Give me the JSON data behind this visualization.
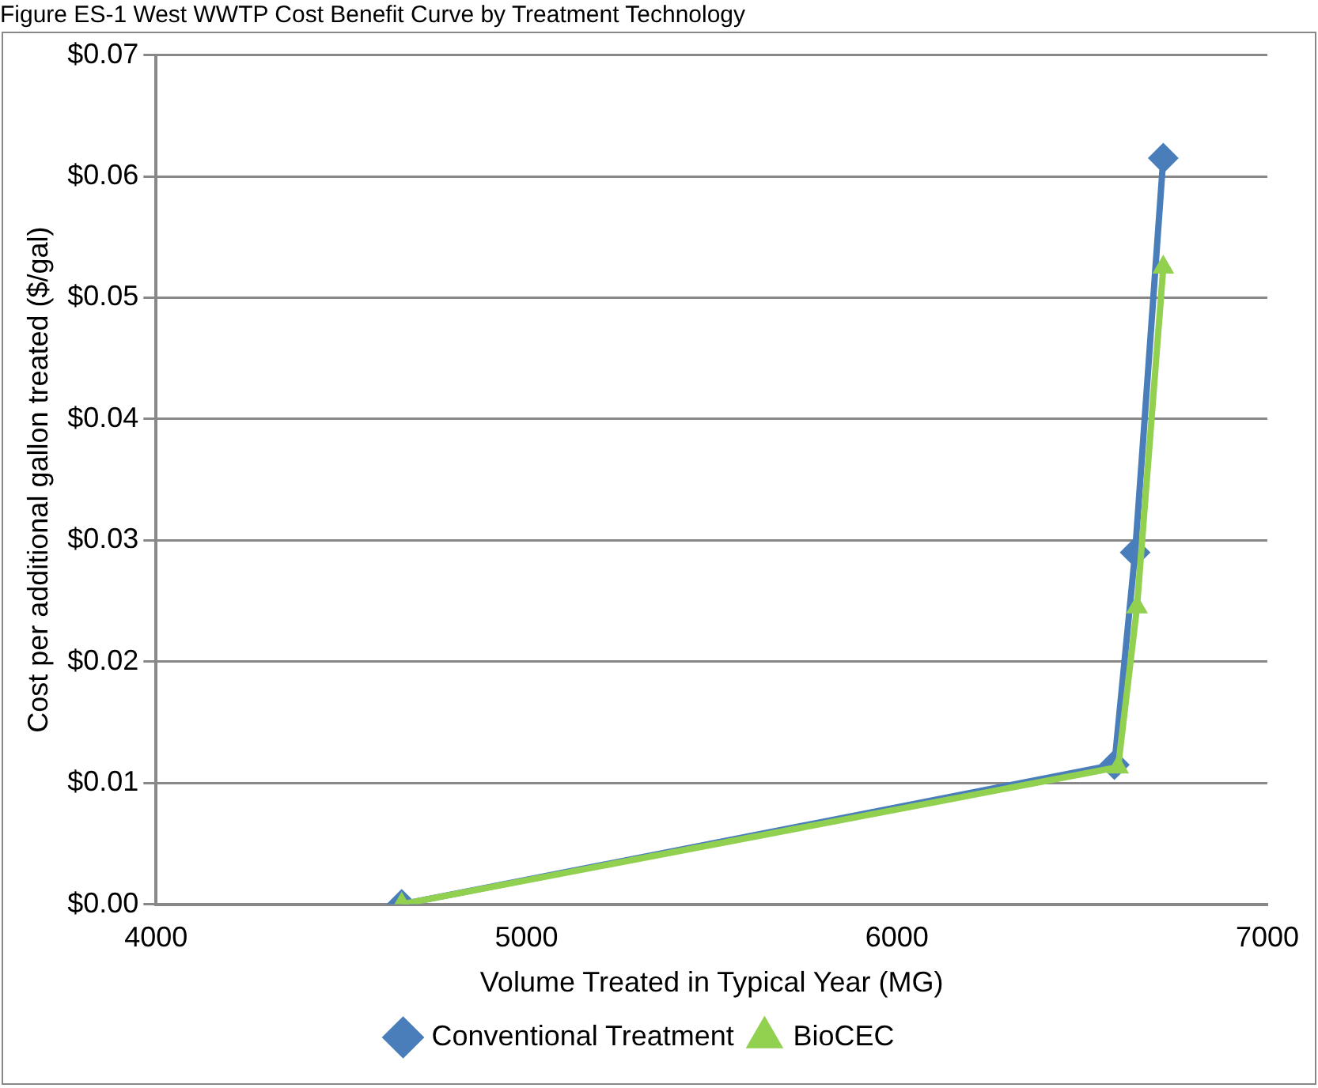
{
  "chart_data": {
    "type": "line",
    "title": "Figure ES-1 West WWTP Cost Benefit Curve by Treatment Technology",
    "xlabel": "Volume Treated in Typical Year (MG)",
    "ylabel": "Cost per additional gallon treated ($/gal)",
    "series": [
      {
        "name": "Conventional Treatment",
        "color": "#4a7ebb",
        "marker": "diamond",
        "x": [
          4663,
          6587,
          6643,
          6719
        ],
        "values": [
          0,
          0.0115,
          0.029,
          0.0615
        ]
      },
      {
        "name": "BioCEC",
        "color": "#92d050",
        "marker": "triangle",
        "x": [
          4663,
          6597,
          6648,
          6719
        ],
        "values": [
          0,
          0.0113,
          0.0245,
          0.0525
        ]
      }
    ],
    "xlim": [
      4000,
      7000
    ],
    "xticks": [
      4000,
      5000,
      6000,
      7000
    ],
    "ylim": [
      0,
      0.07
    ],
    "yticks": [
      {
        "value": 0,
        "label": "$0.00"
      },
      {
        "value": 0.01,
        "label": "$0.01"
      },
      {
        "value": 0.02,
        "label": "$0.02"
      },
      {
        "value": 0.03,
        "label": "$0.03"
      },
      {
        "value": 0.04,
        "label": "$0.04"
      },
      {
        "value": 0.05,
        "label": "$0.05"
      },
      {
        "value": 0.06,
        "label": "$0.06"
      },
      {
        "value": 0.07,
        "label": "$0.07"
      }
    ],
    "grid": "y",
    "legend": "bottom",
    "line_style": "solid"
  }
}
